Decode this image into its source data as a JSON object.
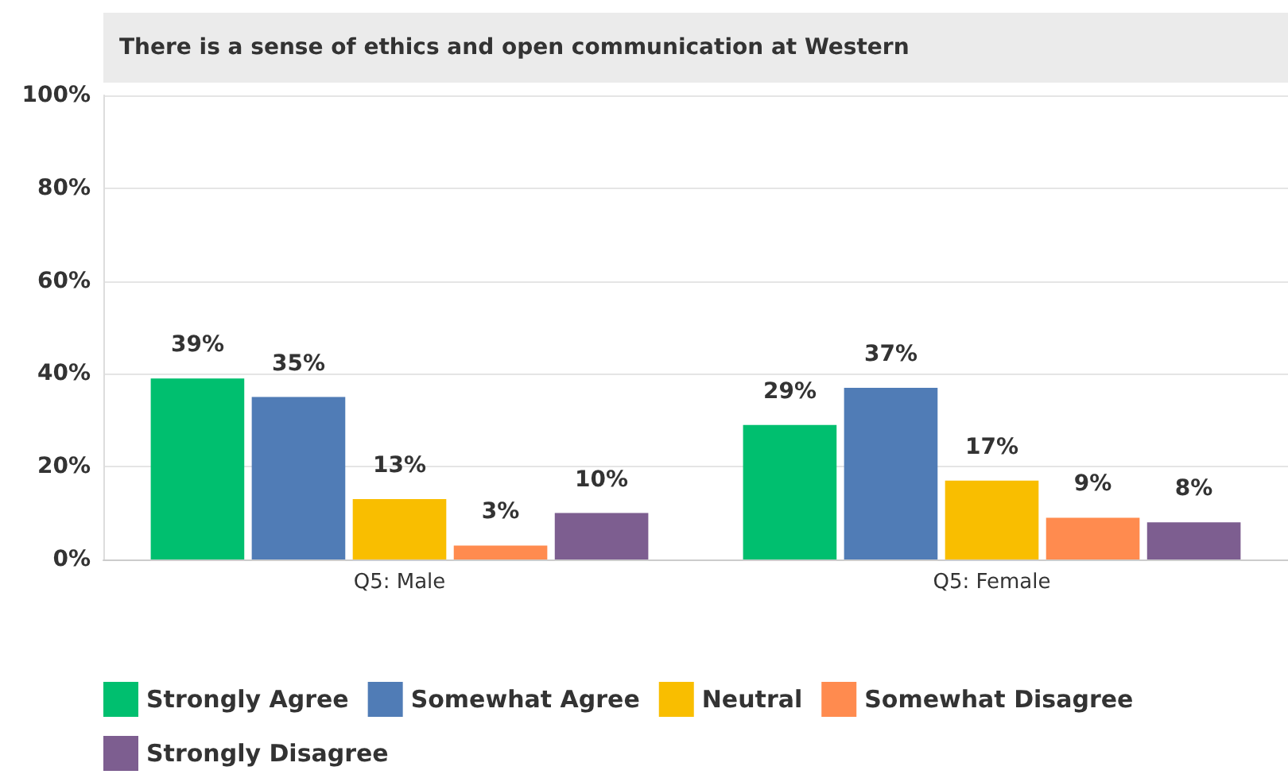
{
  "chart_data": {
    "type": "bar",
    "title": "There is a sense of ethics and open communication at Western",
    "categories": [
      "Q5: Male",
      "Q5: Female"
    ],
    "series": [
      {
        "name": "Strongly Agree",
        "color": "#00bf6f",
        "values": [
          39,
          29
        ],
        "value_labels": [
          "39%",
          "29%"
        ]
      },
      {
        "name": "Somewhat Agree",
        "color": "#507cb6",
        "values": [
          35,
          37
        ],
        "value_labels": [
          "35%",
          "37%"
        ]
      },
      {
        "name": "Neutral",
        "color": "#f9be00",
        "values": [
          13,
          17
        ],
        "value_labels": [
          "13%",
          "17%"
        ]
      },
      {
        "name": "Somewhat Disagree",
        "color": "#ff8b4f",
        "values": [
          3,
          9
        ],
        "value_labels": [
          "3%",
          "9%"
        ]
      },
      {
        "name": "Strongly Disagree",
        "color": "#7d5e90",
        "values": [
          10,
          8
        ],
        "value_labels": [
          "10%",
          "8%"
        ]
      }
    ],
    "ylim": [
      0,
      100
    ],
    "yticks": [
      {
        "value": 0,
        "label": "0%"
      },
      {
        "value": 20,
        "label": "20%"
      },
      {
        "value": 40,
        "label": "40%"
      },
      {
        "value": 60,
        "label": "60%"
      },
      {
        "value": 80,
        "label": "80%"
      },
      {
        "value": 100,
        "label": "100%"
      }
    ],
    "grid": "y",
    "legend": "bottom"
  }
}
